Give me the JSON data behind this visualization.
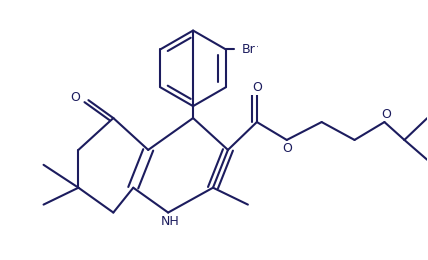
{
  "bg": "#ffffff",
  "lc": "#1c1c5e",
  "lw": 1.5,
  "fw": 4.28,
  "fh": 2.6,
  "dpi": 100,
  "xlim": [
    0.0,
    1.0
  ],
  "ylim": [
    0.0,
    1.0
  ]
}
